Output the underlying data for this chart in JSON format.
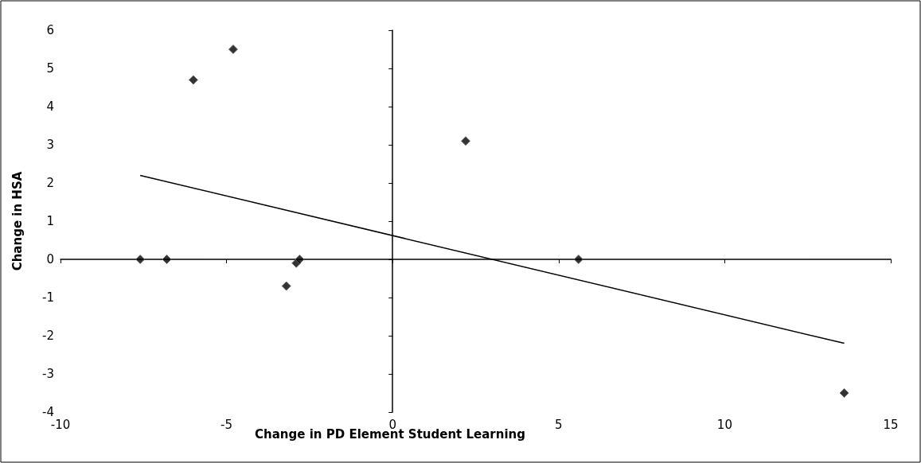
{
  "chart_data": {
    "type": "scatter",
    "xlabel": "Change in PD Element Student Learning",
    "ylabel": "Change in HSA",
    "series": [
      {
        "color": "#000000",
        "marker": "diamond",
        "x": [
          -7.6,
          -6.8,
          -6.0,
          -4.8,
          -3.2,
          -2.9,
          -2.8,
          2.2,
          5.6,
          13.6
        ],
        "values": [
          0,
          0,
          4.7,
          5.5,
          -0.7,
          -0.1,
          0,
          3.1,
          0,
          -3.5
        ]
      },
      {
        "type": "line",
        "color": "#000000",
        "marker": "none",
        "x": [
          -7.6,
          13.6
        ],
        "values": [
          2.2,
          -2.2
        ]
      }
    ],
    "xlim": [
      -10,
      15
    ],
    "xticks": [
      -10,
      -5,
      0,
      5,
      10,
      15
    ],
    "ylim": [
      -4,
      6
    ],
    "yticks": [
      -4,
      -3,
      -2,
      -1,
      0,
      1,
      2,
      3,
      4,
      5,
      6
    ]
  }
}
